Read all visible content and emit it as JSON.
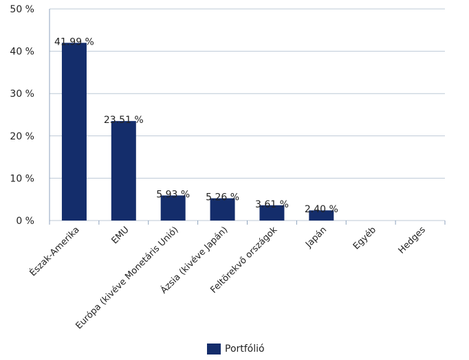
{
  "chart_data": {
    "type": "bar",
    "categories": [
      "Észak-Amerika",
      "EMU",
      "Európa (kivéve Monetáris Unió)",
      "Ázsia (kivéve Japán)",
      "Feltörekvő országok",
      "Japán",
      "Egyéb",
      "Hedges"
    ],
    "series": [
      {
        "name": "Portfólió",
        "values": [
          41.99,
          23.51,
          5.93,
          5.26,
          3.61,
          2.4,
          null,
          null
        ],
        "data_labels": [
          "41.99 %",
          "23.51 %",
          "5.93 %",
          "5.26 %",
          "3.61 %",
          "2.40 %",
          "",
          ""
        ]
      }
    ],
    "y_ticks": [
      "0 %",
      "10 %",
      "20 %",
      "30 %",
      "40 %",
      "50 %"
    ],
    "ylim": [
      0,
      50
    ],
    "grid": true,
    "legend_position": "bottom",
    "colors": {
      "bar": "#142d6b",
      "grid": "#bcc8d6",
      "axis": "#8da2bc"
    }
  }
}
